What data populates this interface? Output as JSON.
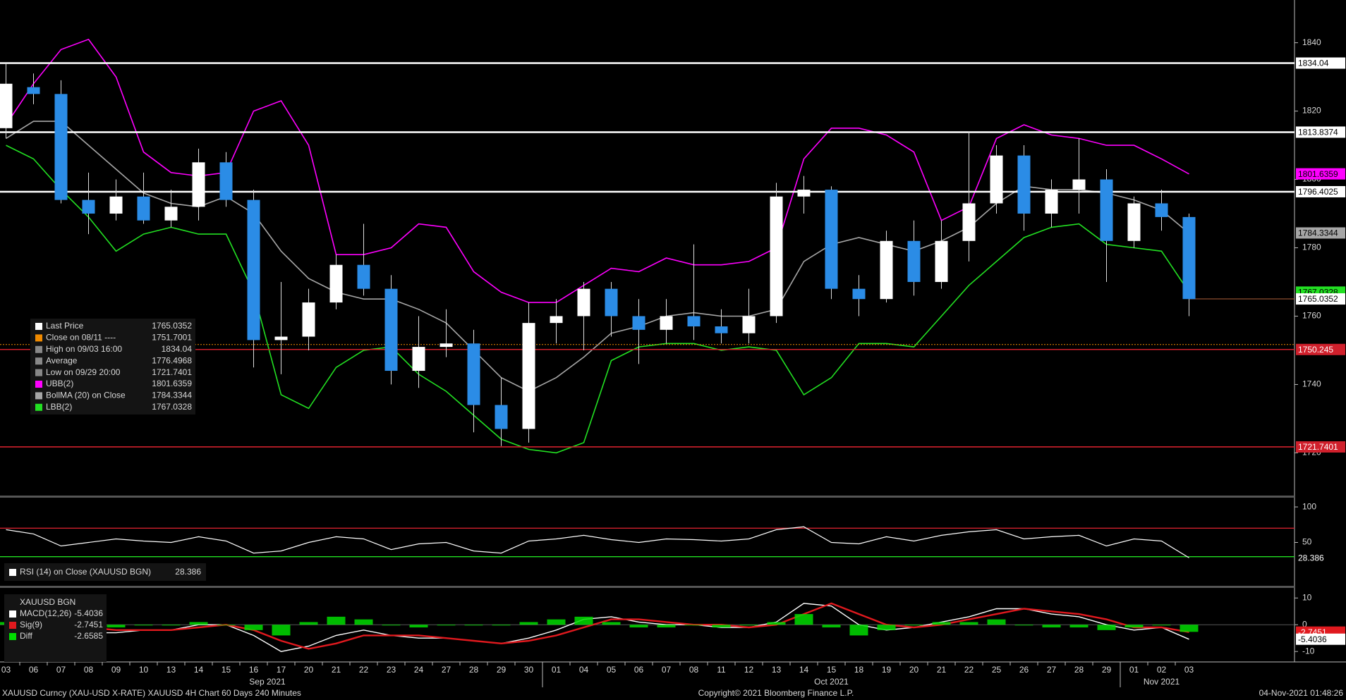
{
  "chart_data": [
    {
      "type": "candlestick",
      "categories": [
        "03",
        "06",
        "07",
        "08",
        "09",
        "10",
        "13",
        "14",
        "15",
        "16",
        "17",
        "20",
        "21",
        "22",
        "23",
        "24",
        "27",
        "28",
        "29",
        "30",
        "01",
        "04",
        "05",
        "06",
        "07",
        "08",
        "11",
        "12",
        "13",
        "14",
        "15",
        "18",
        "19",
        "20",
        "21",
        "22",
        "25",
        "26",
        "27",
        "28",
        "29",
        "01",
        "02",
        "03"
      ],
      "months": [
        "Sep 2021",
        "Oct 2021",
        "Nov 2021"
      ],
      "open": [
        1815,
        1827,
        1825,
        1794,
        1790,
        1795,
        1788,
        1792,
        1805,
        1794,
        1753,
        1754,
        1764,
        1775,
        1768,
        1744,
        1751,
        1752,
        1734,
        1727,
        1758,
        1760,
        1768,
        1760,
        1756,
        1760,
        1757,
        1755,
        1760,
        1795,
        1797,
        1768,
        1765,
        1782,
        1770,
        1782,
        1793,
        1807,
        1790,
        1797,
        1800,
        1782,
        1793,
        1789
      ],
      "high": [
        1834,
        1831,
        1829,
        1802,
        1800,
        1802,
        1797,
        1809,
        1808,
        1797,
        1770,
        1768,
        1778,
        1787,
        1772,
        1760,
        1762,
        1756,
        1742,
        1764,
        1765,
        1770,
        1770,
        1765,
        1765,
        1781,
        1762,
        1768,
        1799,
        1801,
        1798,
        1772,
        1785,
        1788,
        1788,
        1814,
        1810,
        1810,
        1800,
        1812,
        1803,
        1795,
        1797,
        1790
      ],
      "low": [
        1812,
        1822,
        1793,
        1784,
        1788,
        1787,
        1786,
        1788,
        1792,
        1745,
        1743,
        1750,
        1762,
        1766,
        1740,
        1739,
        1748,
        1726,
        1722,
        1723,
        1752,
        1750,
        1754,
        1746,
        1752,
        1753,
        1752,
        1752,
        1758,
        1790,
        1765,
        1760,
        1764,
        1766,
        1768,
        1776,
        1790,
        1785,
        1786,
        1790,
        1770,
        1780,
        1785,
        1760
      ],
      "close": [
        1828,
        1825,
        1794,
        1790,
        1795,
        1788,
        1792,
        1805,
        1794,
        1753,
        1754,
        1764,
        1775,
        1768,
        1744,
        1751,
        1752,
        1734,
        1727,
        1758,
        1760,
        1768,
        1760,
        1756,
        1760,
        1757,
        1755,
        1760,
        1795,
        1797,
        1768,
        1765,
        1782,
        1770,
        1782,
        1793,
        1807,
        1790,
        1797,
        1800,
        1782,
        1793,
        1789,
        1765
      ],
      "up_color": "#ffffff",
      "down_color": "#2b8ce6",
      "series": [
        {
          "name": "UBB(2)",
          "color": "#ff00ff",
          "values": [
            1816,
            1828,
            1838,
            1841,
            1830,
            1808,
            1802,
            1801,
            1802,
            1820,
            1823,
            1810,
            1778,
            1778,
            1780,
            1787,
            1786,
            1773,
            1767,
            1764,
            1764,
            1769,
            1774,
            1773,
            1777,
            1775,
            1775,
            1776,
            1780,
            1806,
            1815,
            1815,
            1813,
            1808,
            1788,
            1792,
            1812,
            1816,
            1813,
            1812,
            1810,
            1810,
            1806,
            1801.6
          ]
        },
        {
          "name": "BollMA (20)  on Close",
          "color": "#a6a6a6",
          "values": [
            1812,
            1817,
            1817,
            1810,
            1803,
            1796,
            1793,
            1792,
            1795,
            1790,
            1779,
            1771,
            1767,
            1765,
            1765,
            1762,
            1758,
            1750,
            1742,
            1738,
            1742,
            1748,
            1755,
            1757,
            1760,
            1761,
            1760,
            1760,
            1762,
            1776,
            1781,
            1783,
            1781,
            1779,
            1782,
            1786,
            1793,
            1798,
            1797,
            1797,
            1796,
            1794,
            1791,
            1784.3
          ]
        },
        {
          "name": "LBB(2)",
          "color": "#22e022",
          "values": [
            1810,
            1806,
            1797,
            1789,
            1779,
            1784,
            1786,
            1784,
            1784,
            1767,
            1737,
            1733,
            1745,
            1750,
            1751,
            1743,
            1738,
            1731,
            1724,
            1721,
            1720,
            1723,
            1747,
            1751,
            1752,
            1752,
            1750,
            1751,
            1750,
            1737,
            1742,
            1752,
            1752,
            1751,
            1760,
            1769,
            1776,
            1783,
            1786,
            1787,
            1781,
            1780,
            1779,
            1767
          ]
        }
      ],
      "levels": [
        {
          "value": 1834.04,
          "color": "#ffffff"
        },
        {
          "value": 1813.8374,
          "color": "#ffffff"
        },
        {
          "value": 1796.4025,
          "color": "#ffffff"
        },
        {
          "value": 1750.245,
          "color": "#d0202c"
        },
        {
          "value": 1721.7401,
          "color": "#d0202c"
        }
      ],
      "legend": [
        {
          "label": "Last Price",
          "value": 1765.0352,
          "color": "#ffffff"
        },
        {
          "label": "Close on 08/11 ----",
          "value": 1751.7001,
          "color": "#f08a00"
        },
        {
          "label": "High on 09/03 16:00",
          "value": 1834.04,
          "color": "#888888"
        },
        {
          "label": "Average",
          "value": 1776.4968,
          "color": "#888888"
        },
        {
          "label": "Low on 09/29 20:00",
          "value": 1721.7401,
          "color": "#888888"
        },
        {
          "label": "UBB(2)",
          "value": 1801.6359,
          "color": "#ff00ff"
        },
        {
          "label": "BollMA (20)  on Close",
          "value": 1784.3344,
          "color": "#a6a6a6"
        },
        {
          "label": "LBB(2)",
          "value": 1767.0328,
          "color": "#22e022"
        }
      ],
      "ylim": [
        1707.5,
        1852.5
      ],
      "yticks": [
        1720,
        1740,
        1760,
        1780,
        1800,
        1820,
        1840
      ]
    },
    {
      "type": "line",
      "name": "RSI (14)  on Close (XAUUSD BGN)",
      "color": "#ffffff",
      "values": [
        68,
        62,
        45,
        50,
        55,
        52,
        50,
        58,
        52,
        35,
        38,
        50,
        58,
        55,
        40,
        48,
        50,
        38,
        35,
        52,
        55,
        60,
        54,
        50,
        55,
        54,
        52,
        55,
        68,
        72,
        50,
        48,
        58,
        52,
        60,
        65,
        68,
        55,
        58,
        60,
        45,
        55,
        52,
        28.386
      ],
      "levels": [
        {
          "value": 70,
          "color": "#d0202c"
        },
        {
          "value": 30,
          "color": "#22e022"
        }
      ],
      "ylim": [
        -11,
        113
      ],
      "yticks": [
        50,
        100
      ]
    },
    {
      "type": "macd",
      "title": "XAUUSD BGN",
      "series": [
        {
          "name": "MACD(12,26)",
          "color": "#ffffff",
          "values": [
            2,
            3,
            -2,
            -3,
            -3,
            -2,
            -2,
            0,
            0,
            -4,
            -10,
            -8,
            -4,
            -2,
            -4,
            -5,
            -5,
            -6,
            -7,
            -5,
            -2,
            2,
            3,
            1,
            0,
            0,
            -1,
            -1,
            1,
            8,
            7,
            0,
            -2,
            -1,
            1,
            3,
            6,
            6,
            4,
            3,
            0,
            -2,
            -1,
            -5.4036
          ]
        },
        {
          "name": "Sig(9)",
          "color": "#e0191e",
          "values": [
            1,
            2,
            1,
            -1,
            -2,
            -2,
            -2,
            -1,
            0,
            -2,
            -6,
            -9,
            -7,
            -4,
            -4,
            -4,
            -5,
            -6,
            -7,
            -6,
            -4,
            -1,
            2,
            2,
            1,
            0,
            0,
            -1,
            0,
            4,
            8,
            4,
            0,
            -1,
            0,
            2,
            4,
            6,
            5,
            4,
            2,
            -1,
            -1,
            -2.7451
          ]
        },
        {
          "name": "Diff",
          "color": "#00dd00",
          "bars": true,
          "values": [
            1,
            1,
            -3,
            -2,
            -1,
            0,
            0,
            1,
            0,
            -2,
            -4,
            1,
            3,
            2,
            0,
            -1,
            0,
            0,
            0,
            1,
            2,
            3,
            1,
            -1,
            -1,
            0,
            -1,
            0,
            1,
            4,
            -1,
            -4,
            -2,
            0,
            1,
            1,
            2,
            0,
            -1,
            -1,
            -2,
            -1,
            0,
            -2.6585
          ]
        }
      ],
      "ylim": [
        -13.9,
        13.5
      ],
      "yticks": [
        -10,
        0,
        10
      ]
    }
  ],
  "footer": {
    "left": "XAUUSD Curncy (XAU-USD X-RATE) XAUUSD 4H Chart 60 Days 240 Minutes",
    "center": "Copyright© 2021 Bloomberg Finance L.P.",
    "right": "04-Nov-2021 01:48:26"
  }
}
